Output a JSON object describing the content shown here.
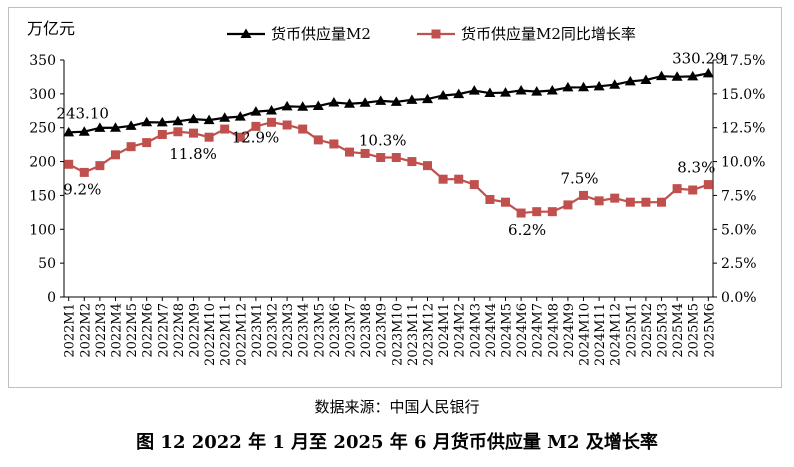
{
  "chart_data": {
    "type": "line",
    "ylabel_left": "万亿元",
    "ylim_left": [
      0,
      350
    ],
    "yticks_left": [
      "0",
      "50",
      "100",
      "150",
      "200",
      "250",
      "300",
      "350"
    ],
    "ylim_right": [
      0,
      17.5
    ],
    "yticks_right": [
      "0.0%",
      "2.5%",
      "5.0%",
      "7.5%",
      "10.0%",
      "12.5%",
      "15.0%",
      "17.5%"
    ],
    "categories": [
      "2022M1",
      "2022M2",
      "2022M3",
      "2022M4",
      "2022M5",
      "2022M6",
      "2022M7",
      "2022M8",
      "2022M9",
      "2022M10",
      "2022M11",
      "2022M12",
      "2023M1",
      "2023M2",
      "2023M3",
      "2023M4",
      "2023M5",
      "2023M6",
      "2023M7",
      "2023M8",
      "2023M9",
      "2023M10",
      "2023M11",
      "2023M12",
      "2024M1",
      "2024M2",
      "2024M3",
      "2024M4",
      "2024M5",
      "2024M6",
      "2024M7",
      "2024M8",
      "2024M9",
      "2024M10",
      "2024M11",
      "2024M12",
      "2025M1",
      "2025M2",
      "2025M3",
      "2025M4",
      "2025M5",
      "2025M6"
    ],
    "series": [
      {
        "name": "货币供应量M2",
        "axis": "left",
        "color": "#000000",
        "marker": "triangle",
        "values": [
          243.1,
          244.1,
          249.8,
          249.9,
          252.7,
          258.1,
          257.8,
          259.5,
          262.7,
          261.2,
          264.7,
          266.4,
          273.8,
          275.5,
          281.5,
          280.9,
          282.1,
          287.3,
          285.4,
          286.9,
          289.7,
          288.2,
          291.2,
          292.3,
          297.6,
          299.6,
          304.8,
          301.2,
          301.8,
          305.0,
          303.3,
          305.0,
          309.5,
          309.7,
          311.1,
          313.5,
          318.5,
          320.5,
          326.1,
          325.2,
          325.8,
          330.29
        ]
      },
      {
        "name": "货币供应量M2同比增长率",
        "axis": "right",
        "color": "#c0504d",
        "marker": "square",
        "values": [
          9.8,
          9.2,
          9.7,
          10.5,
          11.1,
          11.4,
          12.0,
          12.2,
          12.1,
          11.8,
          12.4,
          11.8,
          12.6,
          12.9,
          12.7,
          12.4,
          11.6,
          11.3,
          10.7,
          10.6,
          10.3,
          10.3,
          10.0,
          9.7,
          8.7,
          8.7,
          8.3,
          7.2,
          7.0,
          6.2,
          6.3,
          6.3,
          6.8,
          7.5,
          7.1,
          7.3,
          7.0,
          7.0,
          7.0,
          8.0,
          7.9,
          8.3
        ]
      }
    ],
    "annotations": [
      {
        "series": 0,
        "index": 0,
        "text": "243.10"
      },
      {
        "series": 0,
        "index": 41,
        "text": "330.29"
      },
      {
        "series": 1,
        "index": 1,
        "text": "9.2%"
      },
      {
        "series": 1,
        "index": 9,
        "text": "11.8%"
      },
      {
        "series": 1,
        "index": 13,
        "text": "12.9%"
      },
      {
        "series": 1,
        "index": 20,
        "text": "10.3%"
      },
      {
        "series": 1,
        "index": 29,
        "text": "6.2%"
      },
      {
        "series": 1,
        "index": 33,
        "text": "7.5%"
      },
      {
        "series": 1,
        "index": 41,
        "text": "8.3%"
      }
    ],
    "legend_position": "top-center",
    "grid": false
  },
  "source_note": "数据来源：中国人民银行",
  "caption": "图 12 2022 年 1 月至 2025 年 6 月货币供应量 M2 及增长率"
}
